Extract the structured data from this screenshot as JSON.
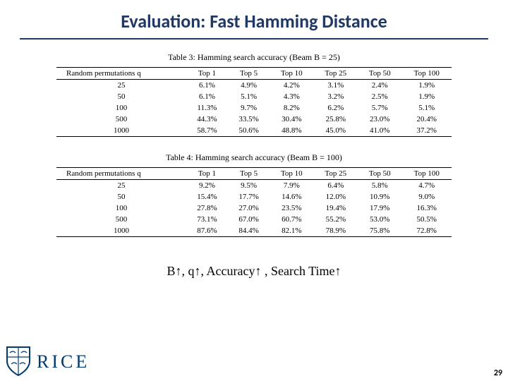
{
  "slide": {
    "title": "Evaluation: Fast Hamming Distance",
    "title_color": "#1f3864",
    "title_fontsize": 26,
    "underline_color": "#1f3864"
  },
  "table3": {
    "caption": "Table 3: Hamming search accuracy (Beam B = 25)",
    "header_left": "Random permutations q",
    "columns": [
      "Top 1",
      "Top 5",
      "Top 10",
      "Top 25",
      "Top 50",
      "Top 100"
    ],
    "q_values": [
      "25",
      "50",
      "100",
      "500",
      "1000"
    ],
    "rows": [
      [
        "6.1%",
        "4.9%",
        "4.2%",
        "3.1%",
        "2.4%",
        "1.9%"
      ],
      [
        "6.1%",
        "5.1%",
        "4.3%",
        "3.2%",
        "2.5%",
        "1.9%"
      ],
      [
        "11.3%",
        "9.7%",
        "8.2%",
        "6.2%",
        "5.7%",
        "5.1%"
      ],
      [
        "44.3%",
        "33.5%",
        "30.4%",
        "25.8%",
        "23.0%",
        "20.4%"
      ],
      [
        "58.7%",
        "50.6%",
        "48.8%",
        "45.0%",
        "41.0%",
        "37.2%"
      ]
    ],
    "fontsize": 11,
    "border_color": "#000000"
  },
  "table4": {
    "caption": "Table 4: Hamming search accuracy (Beam B = 100)",
    "header_left": "Random permutations q",
    "columns": [
      "Top 1",
      "Top 5",
      "Top 10",
      "Top 25",
      "Top 50",
      "Top 100"
    ],
    "q_values": [
      "25",
      "50",
      "100",
      "500",
      "1000"
    ],
    "rows": [
      [
        "9.2%",
        "9.5%",
        "7.9%",
        "6.4%",
        "5.8%",
        "4.7%"
      ],
      [
        "15.4%",
        "17.7%",
        "14.6%",
        "12.0%",
        "10.9%",
        "9.0%"
      ],
      [
        "27.8%",
        "27.0%",
        "23.5%",
        "19.4%",
        "17.9%",
        "16.3%"
      ],
      [
        "73.1%",
        "67.0%",
        "60.7%",
        "55.2%",
        "53.0%",
        "50.5%"
      ],
      [
        "87.6%",
        "84.4%",
        "82.1%",
        "78.9%",
        "75.8%",
        "72.8%"
      ]
    ],
    "fontsize": 11,
    "border_color": "#000000"
  },
  "summary_text": "B↑, q↑, Accuracy↑ , Search Time↑",
  "footer": {
    "logo_text": "RICE",
    "logo_color": "#003c71",
    "shield_color": "#003c71",
    "page_number": "29"
  }
}
